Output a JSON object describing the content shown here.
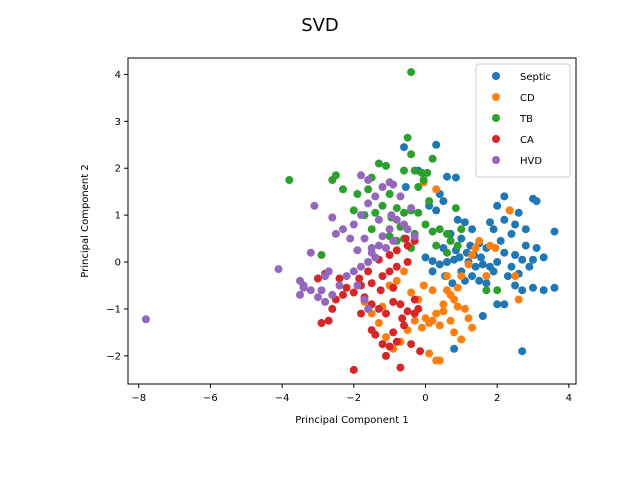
{
  "chart_data": {
    "type": "scatter",
    "title": "SVD",
    "xlabel": "Principal Component 1",
    "ylabel": "Principal Component 2",
    "xlim": [
      -8.3,
      4.2
    ],
    "ylim": [
      -2.6,
      4.35
    ],
    "xticks": [
      -8,
      -6,
      -4,
      -2,
      0,
      2,
      4
    ],
    "yticks": [
      -2,
      -1,
      0,
      1,
      2,
      3,
      4
    ],
    "grid": false,
    "legend_position": "top-right",
    "series": [
      {
        "name": "Septic",
        "color": "#1f77b4",
        "points": [
          [
            0.3,
            2.5
          ],
          [
            -0.6,
            2.45
          ],
          [
            0.6,
            1.82
          ],
          [
            0.85,
            1.8
          ],
          [
            -0.2,
            1.95
          ],
          [
            -0.55,
            1.6
          ],
          [
            0.4,
            1.45
          ],
          [
            0.5,
            1.3
          ],
          [
            0.1,
            1.2
          ],
          [
            0.3,
            1.1
          ],
          [
            0.9,
            0.9
          ],
          [
            1.1,
            0.85
          ],
          [
            1.3,
            0.7
          ],
          [
            1.8,
            0.85
          ],
          [
            1.9,
            0.7
          ],
          [
            2.2,
            0.9
          ],
          [
            2.5,
            0.8
          ],
          [
            2.0,
            1.2
          ],
          [
            2.2,
            1.4
          ],
          [
            3.0,
            1.35
          ],
          [
            3.1,
            1.3
          ],
          [
            2.6,
            1.05
          ],
          [
            2.4,
            0.6
          ],
          [
            2.8,
            0.35
          ],
          [
            3.1,
            0.3
          ],
          [
            3.6,
            0.65
          ],
          [
            3.3,
            0.1
          ],
          [
            3.0,
            0.05
          ],
          [
            2.7,
            0.05
          ],
          [
            2.5,
            0.15
          ],
          [
            2.2,
            0.2
          ],
          [
            2.0,
            0.0
          ],
          [
            1.8,
            -0.1
          ],
          [
            1.6,
            -0.05
          ],
          [
            1.4,
            -0.1
          ],
          [
            1.2,
            0.0
          ],
          [
            1.0,
            -0.2
          ],
          [
            0.8,
            0.05
          ],
          [
            0.6,
            0.0
          ],
          [
            0.4,
            -0.05
          ],
          [
            0.2,
            0.02
          ],
          [
            0.0,
            0.1
          ],
          [
            0.5,
            0.3
          ],
          [
            0.7,
            0.6
          ],
          [
            1.0,
            0.5
          ],
          [
            1.5,
            0.4
          ],
          [
            1.7,
            0.3
          ],
          [
            2.1,
            0.45
          ],
          [
            1.3,
            -0.3
          ],
          [
            1.1,
            -0.4
          ],
          [
            1.5,
            -0.4
          ],
          [
            1.7,
            -0.45
          ],
          [
            1.9,
            -0.2
          ],
          [
            2.3,
            -0.3
          ],
          [
            2.5,
            -0.5
          ],
          [
            2.7,
            -0.6
          ],
          [
            3.0,
            -0.55
          ],
          [
            3.3,
            -0.6
          ],
          [
            3.6,
            -0.55
          ],
          [
            2.0,
            -0.9
          ],
          [
            2.2,
            -0.9
          ],
          [
            2.7,
            -1.9
          ],
          [
            0.8,
            -1.85
          ],
          [
            1.6,
            -1.15
          ],
          [
            0.55,
            -0.3
          ],
          [
            0.75,
            -0.45
          ],
          [
            0.95,
            0.1
          ],
          [
            1.15,
            0.2
          ],
          [
            1.35,
            0.15
          ],
          [
            1.55,
            0.1
          ],
          [
            0.2,
            -0.2
          ],
          [
            2.9,
            -0.1
          ],
          [
            2.6,
            -0.25
          ],
          [
            2.4,
            -0.1
          ],
          [
            2.8,
            0.7
          ],
          [
            2.35,
            1.1
          ],
          [
            0.85,
            0.25
          ],
          [
            1.25,
            0.35
          ]
        ]
      },
      {
        "name": "CD",
        "color": "#ff7f0e",
        "points": [
          [
            0.3,
            1.55
          ],
          [
            -0.05,
            1.7
          ],
          [
            1.8,
            0.35
          ],
          [
            2.35,
            1.1
          ],
          [
            1.5,
            0.45
          ],
          [
            1.4,
            0.3
          ],
          [
            1.3,
            0.15
          ],
          [
            1.2,
            -0.05
          ],
          [
            1.0,
            -0.3
          ],
          [
            0.9,
            -0.55
          ],
          [
            0.7,
            -0.7
          ],
          [
            0.5,
            -0.9
          ],
          [
            0.3,
            -1.1
          ],
          [
            0.1,
            -1.3
          ],
          [
            -0.1,
            -1.4
          ],
          [
            0.2,
            -1.25
          ],
          [
            0.4,
            -1.35
          ],
          [
            0.6,
            -0.6
          ],
          [
            0.8,
            -0.8
          ],
          [
            0.0,
            -1.2
          ],
          [
            -0.3,
            -1.25
          ],
          [
            -0.5,
            -1.45
          ],
          [
            -0.7,
            -1.7
          ],
          [
            -0.9,
            -1.85
          ],
          [
            -1.1,
            -1.6
          ],
          [
            -1.3,
            -1.3
          ],
          [
            -1.5,
            -1.1
          ],
          [
            -1.7,
            -0.85
          ],
          [
            -1.2,
            -0.95
          ],
          [
            -1.0,
            -0.5
          ],
          [
            -0.8,
            -0.4
          ],
          [
            -0.6,
            -0.2
          ],
          [
            0.9,
            -0.95
          ],
          [
            1.1,
            -1.0
          ],
          [
            1.3,
            -1.4
          ],
          [
            1.0,
            -1.65
          ],
          [
            0.4,
            -2.1
          ],
          [
            0.3,
            -2.1
          ],
          [
            0.1,
            -1.95
          ],
          [
            1.2,
            -1.2
          ],
          [
            0.8,
            -1.5
          ],
          [
            1.7,
            -0.3
          ],
          [
            2.5,
            -0.3
          ],
          [
            2.6,
            -0.8
          ],
          [
            1.95,
            0.3
          ],
          [
            0.6,
            -0.3
          ],
          [
            0.2,
            -0.6
          ],
          [
            -0.2,
            -0.8
          ],
          [
            0.5,
            -1.05
          ],
          [
            0.7,
            -1.25
          ],
          [
            -0.05,
            -0.5
          ],
          [
            -0.4,
            -0.65
          ]
        ]
      },
      {
        "name": "TB",
        "color": "#2ca02c",
        "points": [
          [
            -0.4,
            4.05
          ],
          [
            -0.5,
            2.65
          ],
          [
            -0.4,
            2.3
          ],
          [
            -0.6,
            1.95
          ],
          [
            -0.3,
            1.95
          ],
          [
            -0.1,
            1.9
          ],
          [
            0.05,
            1.9
          ],
          [
            -0.05,
            1.75
          ],
          [
            0.2,
            2.2
          ],
          [
            -0.2,
            1.6
          ],
          [
            -1.1,
            2.05
          ],
          [
            -1.3,
            2.1
          ],
          [
            -1.5,
            1.8
          ],
          [
            -1.6,
            1.55
          ],
          [
            -1.9,
            1.45
          ],
          [
            -2.5,
            1.85
          ],
          [
            -2.6,
            1.75
          ],
          [
            -2.3,
            1.55
          ],
          [
            -2.0,
            1.1
          ],
          [
            -1.7,
            1.0
          ],
          [
            -1.4,
            1.05
          ],
          [
            -1.2,
            1.2
          ],
          [
            -1.0,
            1.45
          ],
          [
            -0.8,
            1.15
          ],
          [
            -0.6,
            1.05
          ],
          [
            -0.4,
            1.1
          ],
          [
            -0.2,
            1.05
          ],
          [
            0.0,
            0.8
          ],
          [
            0.2,
            0.65
          ],
          [
            0.4,
            0.7
          ],
          [
            0.6,
            0.6
          ],
          [
            0.7,
            0.45
          ],
          [
            -0.3,
            0.6
          ],
          [
            -0.6,
            0.5
          ],
          [
            -0.8,
            0.45
          ],
          [
            -1.0,
            0.55
          ],
          [
            -0.4,
            0.3
          ],
          [
            -3.8,
            1.75
          ],
          [
            -2.9,
            0.15
          ],
          [
            0.85,
            1.15
          ],
          [
            1.0,
            0.7
          ],
          [
            0.9,
            0.35
          ],
          [
            1.7,
            -0.6
          ],
          [
            2.0,
            -0.6
          ],
          [
            0.6,
            0.2
          ],
          [
            0.3,
            0.35
          ],
          [
            -1.5,
            0.7
          ],
          [
            -0.95,
            0.95
          ],
          [
            0.1,
            1.3
          ],
          [
            -0.7,
            0.75
          ]
        ]
      },
      {
        "name": "CA",
        "color": "#d62728",
        "points": [
          [
            -0.55,
            0.5
          ],
          [
            -0.3,
            0.45
          ],
          [
            -0.5,
            0.35
          ],
          [
            -0.8,
            0.25
          ],
          [
            -1.0,
            0.15
          ],
          [
            -1.3,
            0.05
          ],
          [
            -0.5,
            0.0
          ],
          [
            -0.8,
            -0.1
          ],
          [
            -1.0,
            -0.2
          ],
          [
            -1.2,
            -0.3
          ],
          [
            -1.5,
            -0.45
          ],
          [
            -1.8,
            -0.5
          ],
          [
            -2.0,
            -0.65
          ],
          [
            -2.3,
            -0.7
          ],
          [
            -2.5,
            -0.8
          ],
          [
            -2.6,
            -1.0
          ],
          [
            -2.9,
            -1.3
          ],
          [
            -2.7,
            -1.25
          ],
          [
            -3.0,
            -0.35
          ],
          [
            -2.8,
            -0.25
          ],
          [
            -2.2,
            -0.55
          ],
          [
            -1.7,
            -0.75
          ],
          [
            -1.5,
            -0.9
          ],
          [
            -1.3,
            -1.0
          ],
          [
            -1.1,
            -1.1
          ],
          [
            -0.9,
            -0.85
          ],
          [
            -0.7,
            -0.9
          ],
          [
            -0.5,
            -1.05
          ],
          [
            -0.3,
            -1.1
          ],
          [
            -0.2,
            -1.0
          ],
          [
            -0.6,
            -1.35
          ],
          [
            -0.9,
            -1.5
          ],
          [
            -1.2,
            -1.75
          ],
          [
            -1.0,
            -1.8
          ],
          [
            -0.8,
            -1.7
          ],
          [
            -1.1,
            -2.0
          ],
          [
            -1.4,
            -1.55
          ],
          [
            -1.5,
            -1.45
          ],
          [
            -1.8,
            -1.1
          ],
          [
            -2.0,
            -2.3
          ],
          [
            -0.7,
            -2.25
          ],
          [
            -0.4,
            -1.75
          ],
          [
            -0.15,
            -1.9
          ],
          [
            -1.6,
            -0.2
          ],
          [
            -2.4,
            -0.35
          ],
          [
            -0.9,
            -0.55
          ],
          [
            -1.25,
            -0.6
          ],
          [
            -0.3,
            -0.8
          ],
          [
            -1.85,
            -0.35
          ],
          [
            -0.65,
            -1.2
          ]
        ]
      },
      {
        "name": "HVD",
        "color": "#9467bd",
        "points": [
          [
            -7.8,
            -1.22
          ],
          [
            -4.1,
            -0.15
          ],
          [
            -3.5,
            -0.4
          ],
          [
            -3.4,
            -0.5
          ],
          [
            -3.5,
            -0.7
          ],
          [
            -3.2,
            -0.6
          ],
          [
            -3.0,
            -0.75
          ],
          [
            -2.8,
            -0.85
          ],
          [
            -2.6,
            -0.7
          ],
          [
            -2.4,
            -0.5
          ],
          [
            -2.2,
            -0.3
          ],
          [
            -2.0,
            -0.2
          ],
          [
            -1.8,
            -0.1
          ],
          [
            -1.6,
            0.0
          ],
          [
            -1.5,
            0.2
          ],
          [
            -1.3,
            0.35
          ],
          [
            -1.2,
            0.55
          ],
          [
            -1.0,
            0.7
          ],
          [
            -0.8,
            0.9
          ],
          [
            -0.6,
            0.8
          ],
          [
            -0.5,
            0.7
          ],
          [
            -0.3,
            0.55
          ],
          [
            -2.5,
            0.6
          ],
          [
            -2.3,
            0.7
          ],
          [
            -2.0,
            0.8
          ],
          [
            -1.8,
            1.0
          ],
          [
            -1.6,
            1.25
          ],
          [
            -1.4,
            1.4
          ],
          [
            -1.2,
            1.6
          ],
          [
            -0.9,
            1.65
          ],
          [
            -0.7,
            1.4
          ],
          [
            -1.8,
            1.85
          ],
          [
            -1.6,
            1.75
          ],
          [
            -1.0,
            1.7
          ],
          [
            -3.1,
            1.2
          ],
          [
            -2.6,
            0.95
          ],
          [
            -3.2,
            0.2
          ],
          [
            -2.8,
            -0.3
          ],
          [
            -1.5,
            0.3
          ],
          [
            -1.7,
            0.5
          ],
          [
            -1.1,
            0.3
          ],
          [
            -0.9,
            0.45
          ],
          [
            -3.4,
            -0.55
          ],
          [
            -2.7,
            -0.2
          ],
          [
            -1.9,
            -0.5
          ],
          [
            -1.7,
            -0.8
          ],
          [
            -1.6,
            -1.0
          ],
          [
            -1.9,
            0.25
          ],
          [
            -2.1,
            0.5
          ],
          [
            -1.3,
            0.9
          ],
          [
            -0.4,
            1.15
          ],
          [
            -2.9,
            -0.6
          ],
          [
            -0.95,
            1.0
          ],
          [
            -1.4,
            0.1
          ]
        ]
      }
    ]
  }
}
